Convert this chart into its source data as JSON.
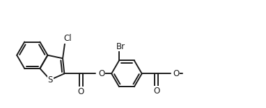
{
  "bg_color": "#ffffff",
  "line_color": "#1a1a1a",
  "line_width": 1.4,
  "font_size": 8.5,
  "figsize": [
    3.82,
    1.56
  ],
  "dpi": 100,
  "xlim": [
    0,
    11.0
  ],
  "ylim": [
    0,
    4.5
  ]
}
